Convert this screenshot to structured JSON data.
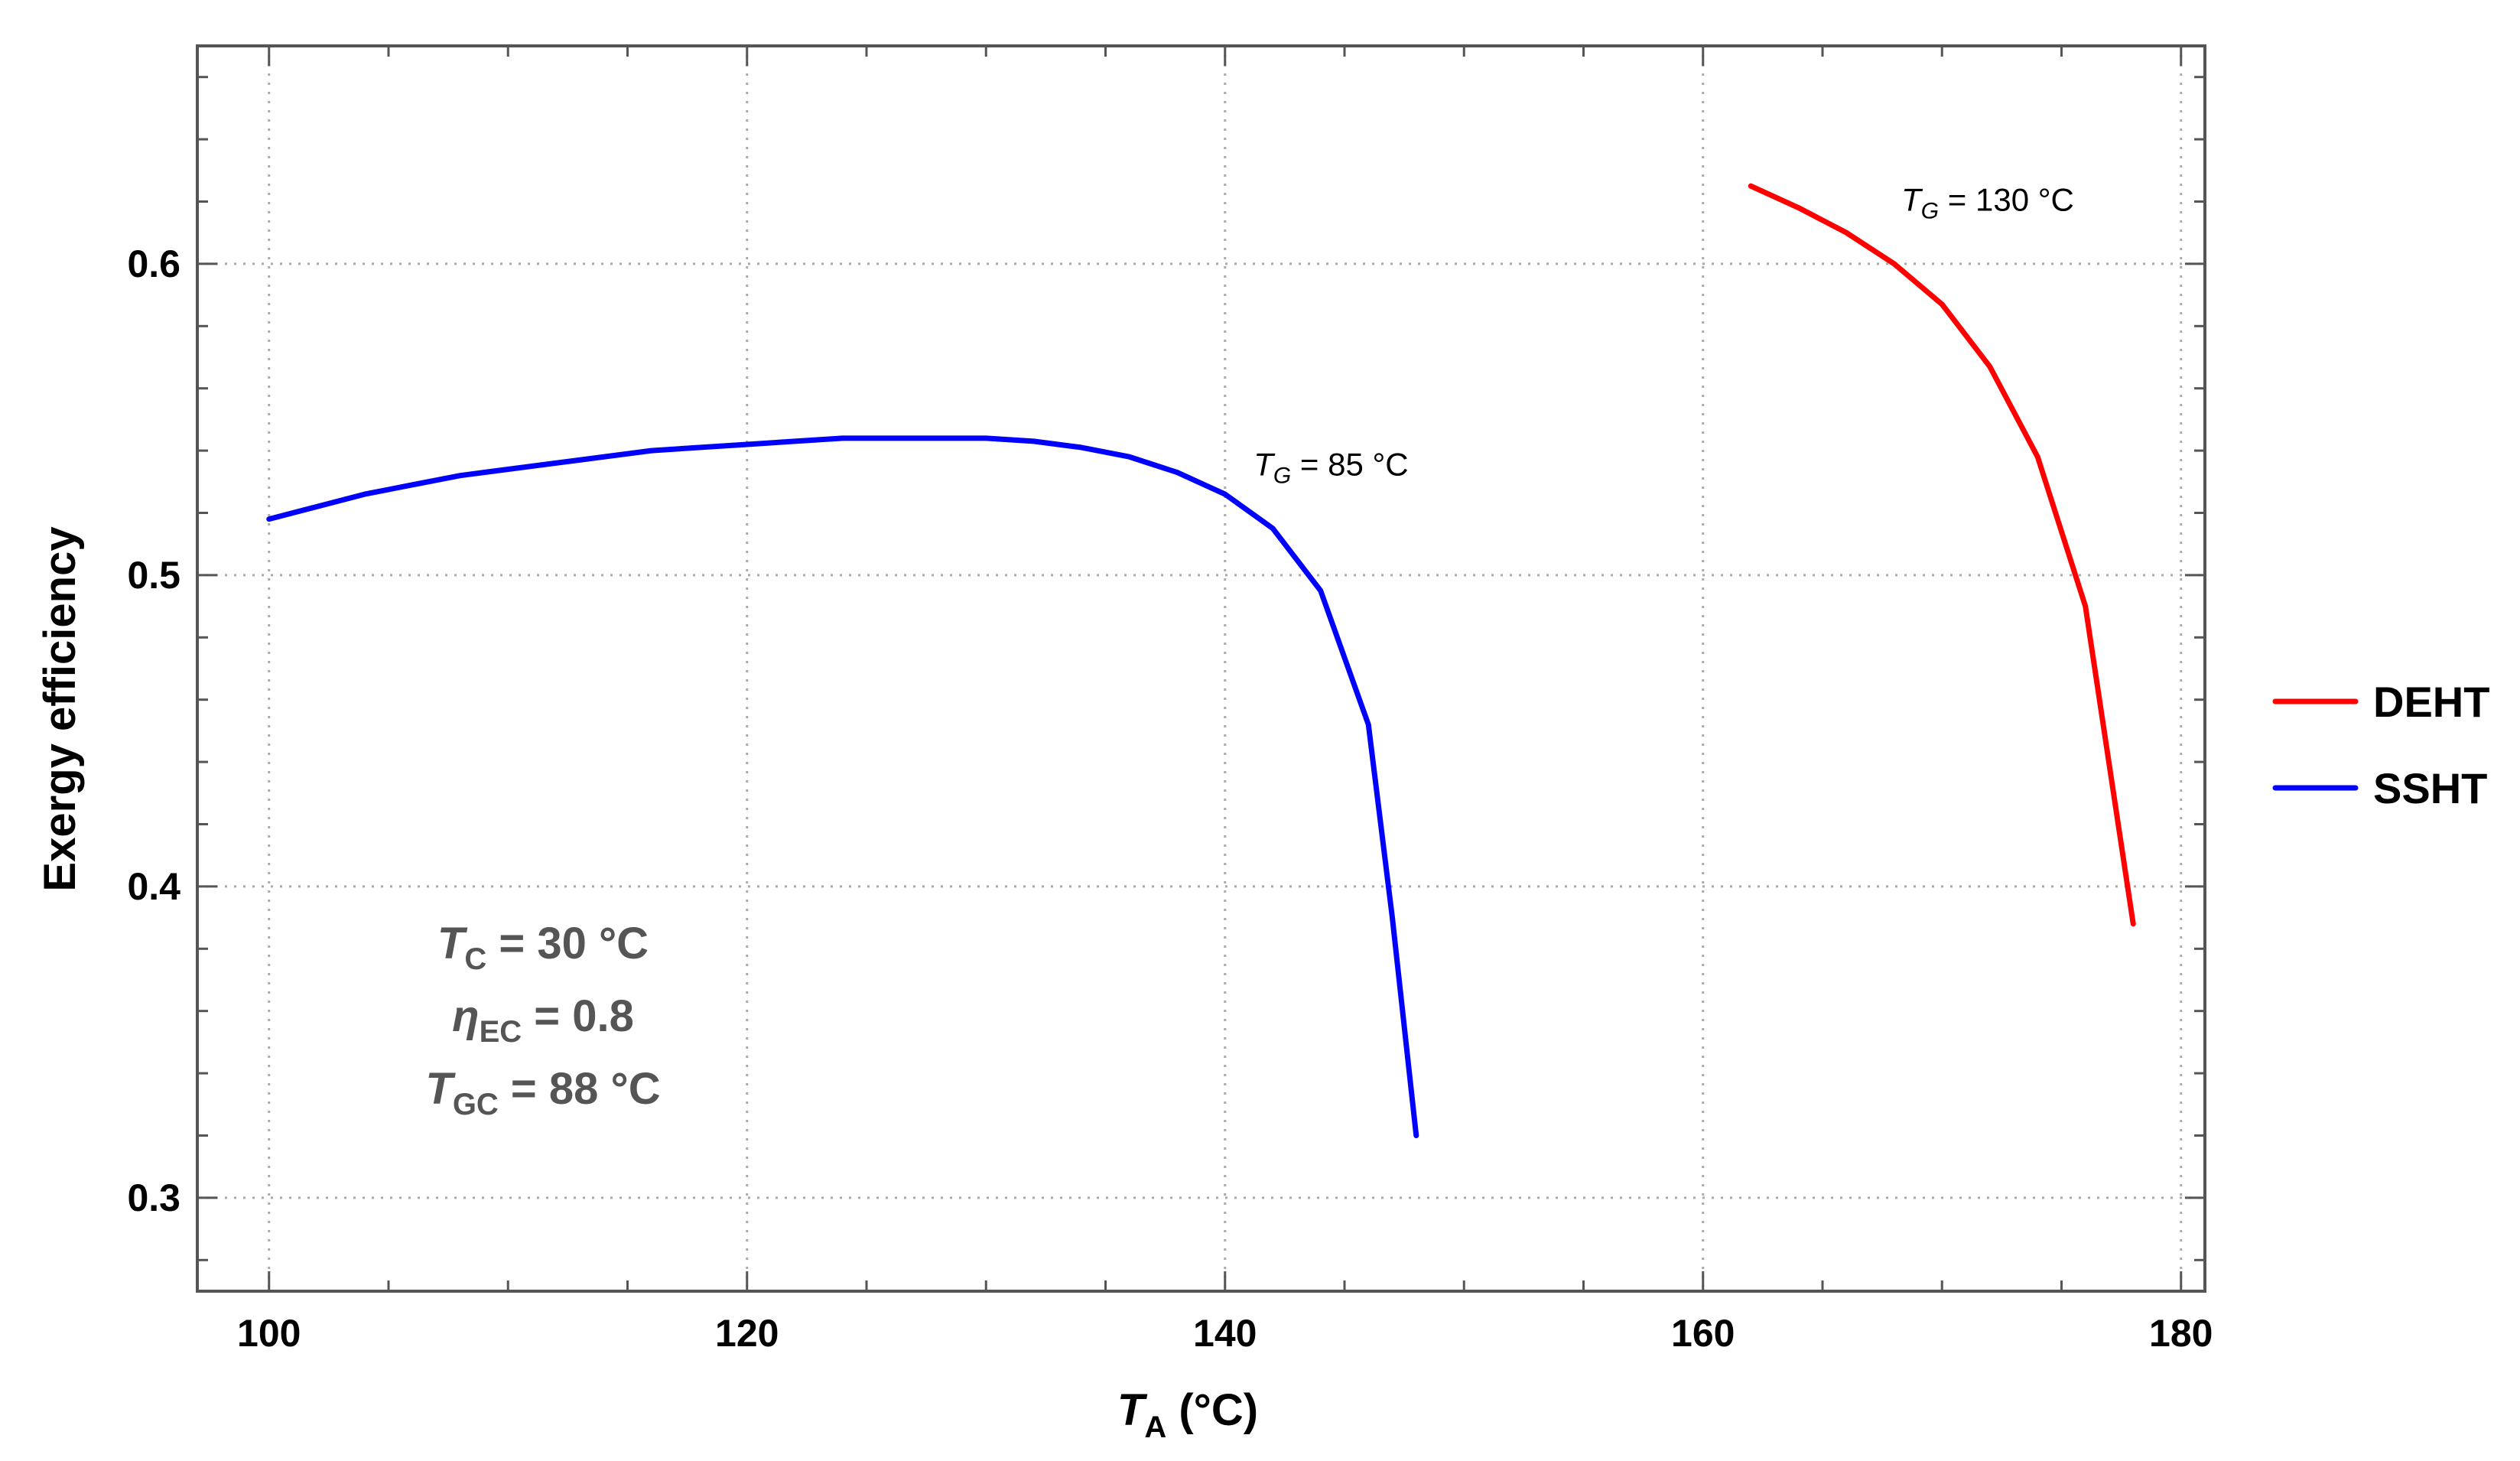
{
  "chart_data": {
    "type": "line",
    "xlabel": {
      "main": "T",
      "sub": "A",
      "rest": " (°C)"
    },
    "ylabel": "Exergy efficiency",
    "xlim": [
      97,
      181
    ],
    "ylim": [
      0.27,
      0.67
    ],
    "xticks": [
      100,
      120,
      140,
      160,
      180
    ],
    "xtick_labels": [
      "100",
      "120",
      "140",
      "160",
      "180"
    ],
    "yticks": [
      0.3,
      0.4,
      0.5,
      0.6
    ],
    "ytick_labels": [
      "0.3",
      "0.4",
      "0.5",
      "0.6"
    ],
    "x_minor_step": 5,
    "y_minor_step": 0.02,
    "grid": true,
    "legend_position": "right",
    "series": [
      {
        "name": "DEHT",
        "color": "#ff0000",
        "x": [
          162,
          164,
          166,
          168,
          170,
          172,
          174,
          176,
          178
        ],
        "y": [
          0.625,
          0.618,
          0.61,
          0.6,
          0.587,
          0.567,
          0.538,
          0.49,
          0.388
        ]
      },
      {
        "name": "SSHT",
        "color": "#0000ff",
        "x": [
          100,
          102,
          104,
          106,
          108,
          110,
          112,
          114,
          116,
          118,
          120,
          122,
          124,
          126,
          128,
          130,
          132,
          134,
          136,
          138,
          140,
          142,
          144,
          146,
          147,
          148
        ],
        "y": [
          0.518,
          0.522,
          0.526,
          0.529,
          0.532,
          0.534,
          0.536,
          0.538,
          0.54,
          0.541,
          0.542,
          0.543,
          0.544,
          0.544,
          0.544,
          0.544,
          0.543,
          0.541,
          0.538,
          0.533,
          0.526,
          0.515,
          0.495,
          0.452,
          0.39,
          0.32
        ]
      }
    ],
    "annotations": [
      {
        "main": "T",
        "sub": "G",
        "rest": " = 85 °C",
        "x": 141.2,
        "y": 0.532
      },
      {
        "main": "T",
        "sub": "G",
        "rest": " = 130 °C",
        "x": 168.3,
        "y": 0.617
      }
    ],
    "conditions": [
      {
        "main": "T",
        "sub": "C",
        "rest": " = 30 °C"
      },
      {
        "main": "η",
        "sub": "EC",
        "rest": " = 0.8"
      },
      {
        "main": "T",
        "sub": "GC",
        "rest": " = 88 °C"
      }
    ]
  }
}
